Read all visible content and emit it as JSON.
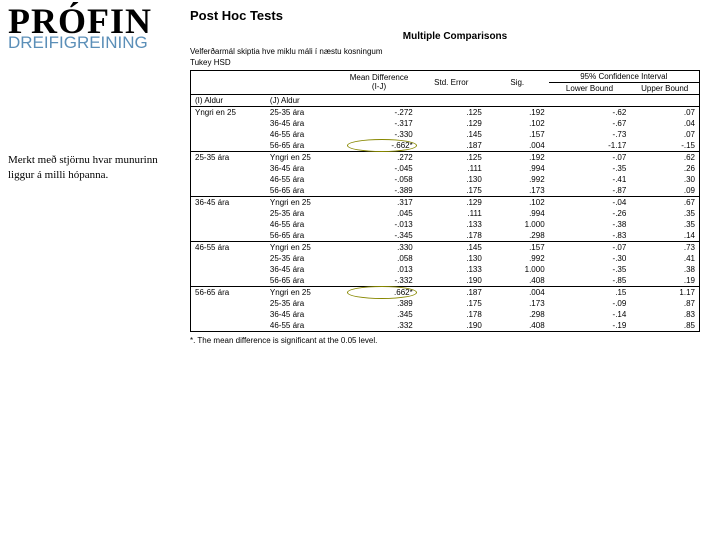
{
  "left": {
    "title": "PRÓFIN",
    "subtitle": "DREIFIGREINING",
    "note": "Merkt með stjörnu hvar munurinn liggur á milli hópanna."
  },
  "right": {
    "post_hoc": "Post Hoc Tests",
    "mc_title": "Multiple Comparisons",
    "caption1": "Velferðarmál skiptia hve miklu máli í næstu kosningum",
    "caption2": "Tukey HSD",
    "footnote": "*. The mean difference is significant at the 0.05 level."
  },
  "table": {
    "headers": {
      "i": "(I) Aldur",
      "j": "(J) Aldur",
      "md": "Mean Difference (I-J)",
      "se": "Std. Error",
      "sig": "Sig.",
      "ci": "95% Confidence Interval",
      "lb": "Lower Bound",
      "ub": "Upper Bound"
    },
    "groups": [
      {
        "i": "Yngri en 25",
        "rows": [
          {
            "j": "25-35 ára",
            "md": "-.272",
            "se": ".125",
            "sig": ".192",
            "lb": "-.62",
            "ub": ".07"
          },
          {
            "j": "36-45 ára",
            "md": "-.317",
            "se": ".129",
            "sig": ".102",
            "lb": "-.67",
            "ub": ".04"
          },
          {
            "j": "46-55 ára",
            "md": "-.330",
            "se": ".145",
            "sig": ".157",
            "lb": "-.73",
            "ub": ".07"
          },
          {
            "j": "56-65 ára",
            "md": "-.662*",
            "se": ".187",
            "sig": ".004",
            "lb": "-1.17",
            "ub": "-.15",
            "hl": true
          }
        ]
      },
      {
        "i": "25-35 ára",
        "rows": [
          {
            "j": "Yngri en 25",
            "md": ".272",
            "se": ".125",
            "sig": ".192",
            "lb": "-.07",
            "ub": ".62"
          },
          {
            "j": "36-45 ára",
            "md": "-.045",
            "se": ".111",
            "sig": ".994",
            "lb": "-.35",
            "ub": ".26"
          },
          {
            "j": "46-55 ára",
            "md": "-.058",
            "se": ".130",
            "sig": ".992",
            "lb": "-.41",
            "ub": ".30"
          },
          {
            "j": "56-65 ára",
            "md": "-.389",
            "se": ".175",
            "sig": ".173",
            "lb": "-.87",
            "ub": ".09"
          }
        ]
      },
      {
        "i": "36-45 ára",
        "rows": [
          {
            "j": "Yngri en 25",
            "md": ".317",
            "se": ".129",
            "sig": ".102",
            "lb": "-.04",
            "ub": ".67"
          },
          {
            "j": "25-35 ára",
            "md": ".045",
            "se": ".111",
            "sig": ".994",
            "lb": "-.26",
            "ub": ".35"
          },
          {
            "j": "46-55 ára",
            "md": "-.013",
            "se": ".133",
            "sig": "1.000",
            "lb": "-.38",
            "ub": ".35"
          },
          {
            "j": "56-65 ára",
            "md": "-.345",
            "se": ".178",
            "sig": ".298",
            "lb": "-.83",
            "ub": ".14"
          }
        ]
      },
      {
        "i": "46-55 ára",
        "rows": [
          {
            "j": "Yngri en 25",
            "md": ".330",
            "se": ".145",
            "sig": ".157",
            "lb": "-.07",
            "ub": ".73"
          },
          {
            "j": "25-35 ára",
            "md": ".058",
            "se": ".130",
            "sig": ".992",
            "lb": "-.30",
            "ub": ".41"
          },
          {
            "j": "36-45 ára",
            "md": ".013",
            "se": ".133",
            "sig": "1.000",
            "lb": "-.35",
            "ub": ".38"
          },
          {
            "j": "56-65 ára",
            "md": "-.332",
            "se": ".190",
            "sig": ".408",
            "lb": "-.85",
            "ub": ".19"
          }
        ]
      },
      {
        "i": "56-65 ára",
        "rows": [
          {
            "j": "Yngri en 25",
            "md": ".662*",
            "se": ".187",
            "sig": ".004",
            "lb": ".15",
            "ub": "1.17",
            "hl": true
          },
          {
            "j": "25-35 ára",
            "md": ".389",
            "se": ".175",
            "sig": ".173",
            "lb": "-.09",
            "ub": ".87"
          },
          {
            "j": "36-45 ára",
            "md": ".345",
            "se": ".178",
            "sig": ".298",
            "lb": "-.14",
            "ub": ".83"
          },
          {
            "j": "46-55 ára",
            "md": ".332",
            "se": ".190",
            "sig": ".408",
            "lb": "-.19",
            "ub": ".85"
          }
        ]
      }
    ]
  }
}
